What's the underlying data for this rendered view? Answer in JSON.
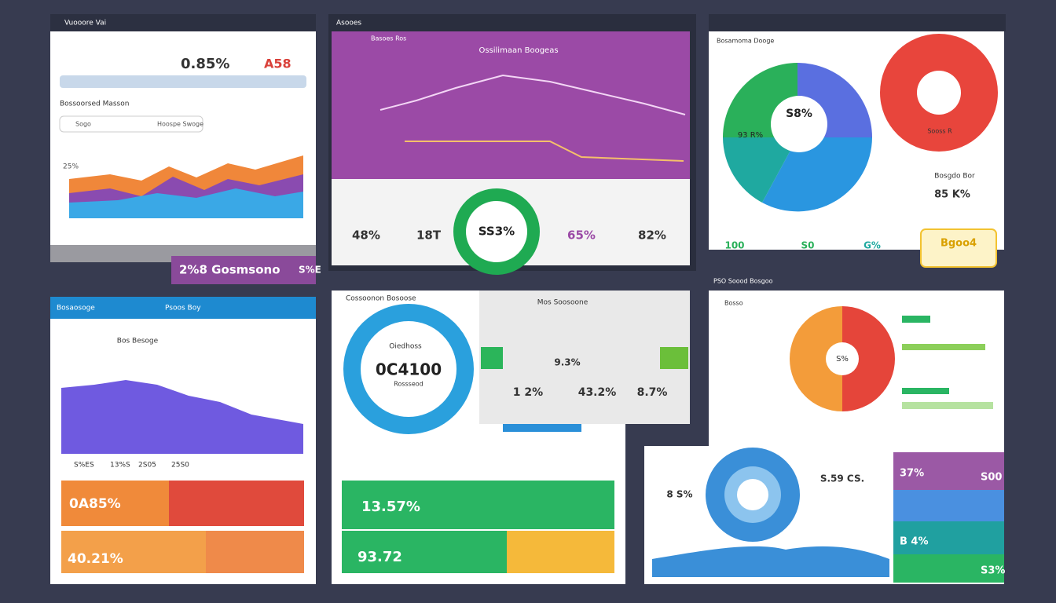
{
  "panels": [
    {
      "title": "Vuooore Vai",
      "texts": [
        "0.85%",
        "A58",
        "Bossoorsed Masson",
        "Sogo",
        "Hoospe Swoge",
        "25%",
        "2%8 Gosmsono",
        "S%E"
      ]
    },
    {
      "title": "Asooes",
      "texts": [
        "Basoes Ros",
        "Ossilimaan Boogeas",
        "SS3%",
        "48%",
        "18T",
        "65%",
        "82%"
      ]
    },
    {
      "title": "Bosamoma Dooge",
      "texts": [
        "S8%",
        "93 R%",
        "Sooss R",
        "Bosgdo Bor",
        "85 K%",
        "100",
        "S0",
        "G%",
        "Bgoo4"
      ]
    },
    {
      "title": "Bosaosoge",
      "texts": [
        "Psoos Boy",
        "Bos Besoge",
        "S%ES",
        "13%S",
        "2S05",
        "25S0",
        "0A85%",
        "40.21%"
      ]
    },
    {
      "title": "Cossoonon Bosoose",
      "texts": [
        "Mos Soosoone",
        "Oiedhoss",
        "0C4100",
        "Rossseod",
        "9.3%",
        "1 2%",
        "43.2%",
        "8.7%",
        "13.57%",
        "93.72"
      ]
    },
    {
      "title": "PSO Soood Bosgoo",
      "texts": [
        "S%",
        "Bosso",
        "S.59 CS.",
        "8 S%",
        "37%",
        "S00",
        "B 4%",
        "S3%"
      ]
    }
  ]
}
